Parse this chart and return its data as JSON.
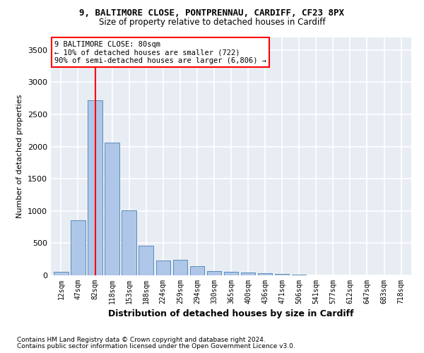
{
  "title_line1": "9, BALTIMORE CLOSE, PONTPRENNAU, CARDIFF, CF23 8PX",
  "title_line2": "Size of property relative to detached houses in Cardiff",
  "xlabel": "Distribution of detached houses by size in Cardiff",
  "ylabel": "Number of detached properties",
  "categories": [
    "12sqm",
    "47sqm",
    "82sqm",
    "118sqm",
    "153sqm",
    "188sqm",
    "224sqm",
    "259sqm",
    "294sqm",
    "330sqm",
    "365sqm",
    "400sqm",
    "436sqm",
    "471sqm",
    "506sqm",
    "541sqm",
    "577sqm",
    "612sqm",
    "647sqm",
    "683sqm",
    "718sqm"
  ],
  "values": [
    60,
    850,
    2720,
    2060,
    1010,
    460,
    235,
    240,
    140,
    70,
    55,
    45,
    30,
    20,
    10,
    5,
    5,
    5,
    5,
    5,
    5
  ],
  "bar_color": "#aec6e8",
  "bar_edge_color": "#5b8db8",
  "vline_x_index": 2,
  "vline_color": "red",
  "annotation_text": "9 BALTIMORE CLOSE: 80sqm\n← 10% of detached houses are smaller (722)\n90% of semi-detached houses are larger (6,806) →",
  "annotation_box_facecolor": "white",
  "annotation_box_edgecolor": "red",
  "ylim": [
    0,
    3700
  ],
  "yticks": [
    0,
    500,
    1000,
    1500,
    2000,
    2500,
    3000,
    3500
  ],
  "background_color": "#e8edf4",
  "grid_color": "white",
  "footnote1": "Contains HM Land Registry data © Crown copyright and database right 2024.",
  "footnote2": "Contains public sector information licensed under the Open Government Licence v3.0."
}
